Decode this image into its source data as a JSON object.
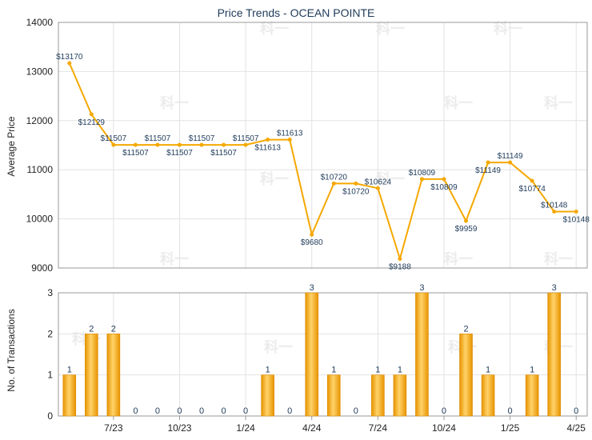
{
  "chart_data": [
    {
      "type": "line",
      "title": "Price Trends - OCEAN POINTE",
      "ylabel": "Average Price",
      "ylim": [
        9000,
        14000
      ],
      "yticks": [
        9000,
        10000,
        11000,
        12000,
        13000,
        14000
      ],
      "color": "#f5a800",
      "grid": true,
      "series": [
        {
          "points": [
            {
              "x": 0,
              "y": 13170,
              "label": "$13170"
            },
            {
              "x": 1,
              "y": 12129,
              "label": "$12129"
            },
            {
              "x": 2,
              "y": 11507,
              "label": "$11507"
            },
            {
              "x": 3,
              "y": 11507,
              "label": "$11507"
            },
            {
              "x": 4,
              "y": 11507,
              "label": "$11507"
            },
            {
              "x": 5,
              "y": 11507,
              "label": "$11507"
            },
            {
              "x": 6,
              "y": 11507,
              "label": "$11507"
            },
            {
              "x": 7,
              "y": 11507,
              "label": "$11507"
            },
            {
              "x": 8,
              "y": 11507,
              "label": "$11507"
            },
            {
              "x": 9,
              "y": 11613,
              "label": "$11613"
            },
            {
              "x": 10,
              "y": 11613,
              "label": "$11613"
            },
            {
              "x": 11,
              "y": 9680,
              "label": "$9680"
            },
            {
              "x": 12,
              "y": 10720,
              "label": "$10720"
            },
            {
              "x": 13,
              "y": 10720,
              "label": "$10720"
            },
            {
              "x": 14,
              "y": 10624,
              "label": "$10624"
            },
            {
              "x": 15,
              "y": 9188,
              "label": "$9188"
            },
            {
              "x": 16,
              "y": 10809,
              "label": "$10809"
            },
            {
              "x": 17,
              "y": 10809,
              "label": "$10809"
            },
            {
              "x": 18,
              "y": 9959,
              "label": "$9959"
            },
            {
              "x": 19,
              "y": 11149,
              "label": "$11149"
            },
            {
              "x": 20,
              "y": 11149,
              "label": "$11149"
            },
            {
              "x": 21,
              "y": 10774,
              "label": "$10774"
            },
            {
              "x": 22,
              "y": 10148,
              "label": "$10148"
            },
            {
              "x": 23,
              "y": 10148,
              "label": "$10148"
            }
          ]
        }
      ]
    },
    {
      "type": "bar",
      "ylabel": "No. of Transactions",
      "ylim": [
        0,
        3
      ],
      "yticks": [
        0,
        1,
        2,
        3
      ],
      "color": "#f5a800",
      "grid": true,
      "values": [
        1,
        2,
        2,
        0,
        0,
        0,
        0,
        0,
        0,
        1,
        0,
        3,
        1,
        0,
        1,
        1,
        3,
        0,
        2,
        1,
        0,
        1,
        3,
        0
      ],
      "xticks": [
        {
          "x": 2,
          "label": "7/23"
        },
        {
          "x": 5,
          "label": "10/23"
        },
        {
          "x": 8,
          "label": "1/24"
        },
        {
          "x": 11,
          "label": "4/24"
        },
        {
          "x": 14,
          "label": "7/24"
        },
        {
          "x": 17,
          "label": "10/24"
        },
        {
          "x": 20,
          "label": "1/25"
        },
        {
          "x": 23,
          "label": "4/25"
        }
      ]
    }
  ]
}
